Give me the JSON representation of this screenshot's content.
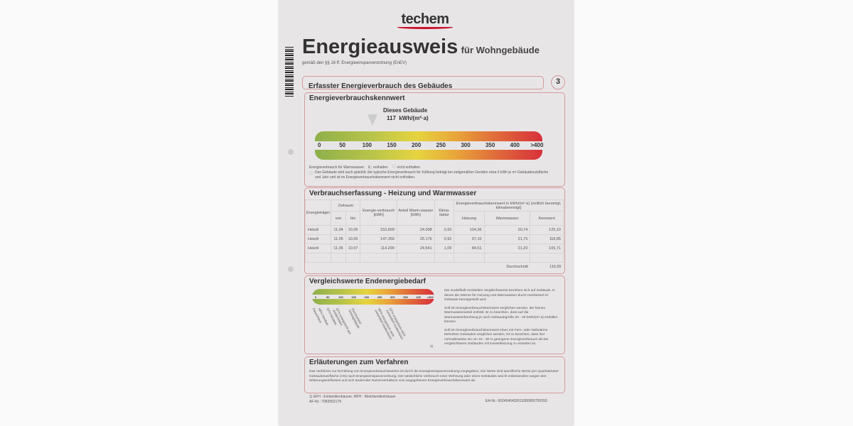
{
  "logo": "techem",
  "title": "Energieausweis",
  "title_suffix": "für Wohngebäude",
  "subtitle": "gemäß den §§ 16 ff. Energieeinsparverordnung (EnEV)",
  "section_header": "Erfasster Energieverbrauch des Gebäudes",
  "page_number": "3",
  "kennwert": {
    "heading": "Energieverbrauchskennwert",
    "building_label": "Dieses Gebäude",
    "value": "117",
    "unit": "kWh/(m²·a)",
    "value_numeric": 117,
    "scale": [
      "0",
      "50",
      "100",
      "150",
      "200",
      "250",
      "300",
      "350",
      "400",
      ">400"
    ],
    "warmwasser_label": "Energieverbrauch für Warmwasser:",
    "opt_included": "enthalten",
    "opt_included_checked": "X",
    "opt_excluded": "nicht enthalten",
    "cooling_note": "Das Gebäude wird auch gekühlt; der typische Energieverbrauch für Kühlung beträgt bei zeitgemäßen Geräten etwa 6 kWh je m² Gebäudenutzfläche und Jahr und ist im Energieverbrauchskennwert nicht enthalten."
  },
  "verbrauch": {
    "heading": "Verbrauchserfassung - Heizung und Warmwasser",
    "headers": {
      "traeger": "Energieträger",
      "zeitraum": "Zeitraum",
      "von": "von",
      "bis": "bis",
      "energie": "Energie-verbrauch [kWh]",
      "anteil": "Anteil Warm-wasser [kWh]",
      "klima": "Klima-faktor",
      "kennwert_group": "Energieverbrauchskennwert in kWh/(m²·a) (zeitlich bereinigt, klimabereinigt)",
      "heizung": "Heizung",
      "warmwasser": "Warmwasser",
      "kennwert": "Kennwert"
    },
    "rows": [
      [
        "Heizöl",
        "11.04",
        "10.05",
        "153.899",
        "24.008",
        "0,93",
        "104,36",
        "20,74",
        "125,10"
      ],
      [
        "Heizöl",
        "11.05",
        "10.06",
        "147.350",
        "25.176",
        "0,92",
        "97,10",
        "21,75",
        "118,85"
      ],
      [
        "Heizöl",
        "11.06",
        "10.07",
        "114.290",
        "24.541",
        "1,09",
        "84,51",
        "21,20",
        "105,71"
      ]
    ],
    "avg_label": "Durchschnitt",
    "avg_value": "116,55"
  },
  "vergleich": {
    "heading": "Vergleichswerte Endenergiebedarf",
    "scale": [
      "0",
      "50",
      "100",
      "150",
      "200",
      "250",
      "300",
      "350",
      "400",
      ">400"
    ],
    "labels": [
      "Passivhaus",
      "MFH Neubau",
      "EFH Neubau",
      "EFH energetisch gut modernisiert",
      "Durchschnitt Wohngebäude",
      "MFH energetisch nicht wesentlich modernisiert",
      "EFH energetisch nicht wesentlich modernisiert"
    ],
    "footnote_mark": "1)",
    "text": [
      "Die modellhaft ermittelten Vergleichswerte beziehen sich auf Gebäude, in denen die Wärme für Heizung und Warmwasser durch Heizkessel im Gebäude bereitgestellt wird.",
      "Soll ein Energieverbrauchskennwert verglichen werden, der keinen Warmwasseranteil enthält, ist zu beachten, dass auf die Warmwasserbereitung je nach Gebäudegröße 20 - 40 kWh/(m²·a) entfallen können.",
      "Soll ein Energieverbrauchskennwert eines mit Fern- oder Nahwärme beheizten Gebäudes verglichen werden, ist zu beachten, dass hier normalerweise ein um 15 - 30 % geringerer Energieverbrauch als bei vergleichbaren Gebäuden mit Kesselheizung zu erwarten ist."
    ]
  },
  "erlaeuterung": {
    "heading": "Erläuterungen zum Verfahren",
    "text": "Das Verfahren zur Ermittlung von Energieverbrauchswerten ist durch die Energieeinsparverordnung vorgegeben. Die Werte sind spezifische Werte pro Quadratmeter Gebäudenutzfläche (AN) nach Energieeinsparverordnung. Der tatsächliche Verbrauch einer Wohnung oder eines Gebäudes weicht insbesondere wegen des Witterungseinflusses und sich ändernder Nutzerverhaltens vom angegebenen Energieverbrauchskennwert ab."
  },
  "footer": {
    "note": "1) EFH - Einfamilienhäuser, MFH - Mehrfamilienhäuser",
    "af_nr": "AF-Nr.: 7082062179",
    "ea_nr": "EA-Nr.: 0024040432611080000750393"
  },
  "colors": {
    "accent": "#c8102e",
    "frame": "#d49a9a"
  }
}
